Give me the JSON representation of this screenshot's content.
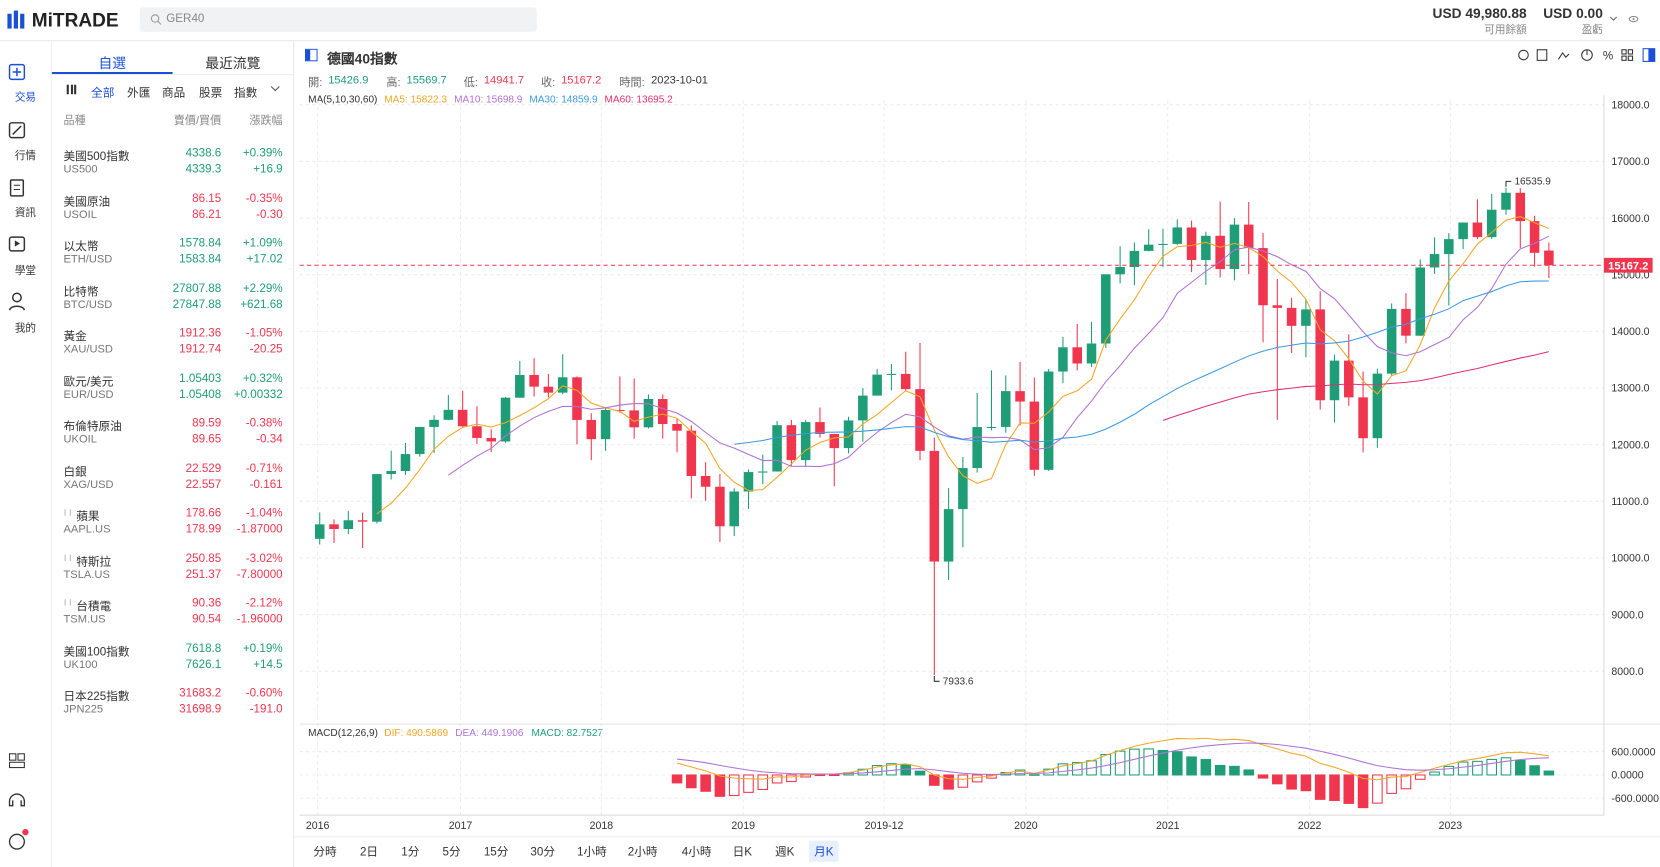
{
  "header": {
    "logo": "MiTRADE",
    "search": "GER40",
    "balance": "USD 49,980.88",
    "balance_label": "可用餘額",
    "pnl": "USD 0.00",
    "pnl_label": "盈虧"
  },
  "nav": [
    "交易",
    "行情",
    "資訊",
    "學堂",
    "我的"
  ],
  "watchlist": {
    "tabs": [
      "自選",
      "最近流覽"
    ],
    "filters": [
      "全部",
      "外匯",
      "商品",
      "股票",
      "指數"
    ],
    "columns": [
      "品種",
      "賣價/買價",
      "漲跌幅"
    ],
    "items": [
      {
        "name": "美國500指數",
        "symbol": "US500",
        "sell": "4338.6",
        "buy": "4339.3",
        "change_pct": "+0.39%",
        "change": "+16.9"
      },
      {
        "name": "美國原油",
        "symbol": "USOIL",
        "sell": "86.15",
        "buy": "86.21",
        "change_pct": "-0.35%",
        "change": "-0.30"
      },
      {
        "name": "以太幣",
        "symbol": "ETH/USD",
        "sell": "1578.84",
        "buy": "1583.84",
        "change_pct": "+1.09%",
        "change": "+17.02"
      },
      {
        "name": "比特幣",
        "symbol": "BTC/USD",
        "sell": "27807.88",
        "buy": "27847.88",
        "change_pct": "+2.29%",
        "change": "+621.68"
      },
      {
        "name": "黃金",
        "symbol": "XAU/USD",
        "sell": "1912.36",
        "buy": "1912.74",
        "change_pct": "-1.05%",
        "change": "-20.25"
      },
      {
        "name": "歐元/美元",
        "symbol": "EUR/USD",
        "sell": "1.05403",
        "buy": "1.05408",
        "change_pct": "+0.32%",
        "change": "+0.00332"
      },
      {
        "name": "布倫特原油",
        "symbol": "UKOIL",
        "sell": "89.59",
        "buy": "89.65",
        "change_pct": "-0.38%",
        "change": "-0.34"
      },
      {
        "name": "白銀",
        "symbol": "XAG/USD",
        "sell": "22.529",
        "buy": "22.557",
        "change_pct": "-0.71%",
        "change": "-0.161"
      },
      {
        "name": "蘋果",
        "symbol": "AAPL.US",
        "sell": "178.66",
        "buy": "178.99",
        "change_pct": "-1.04%",
        "change": "-1.87000"
      },
      {
        "name": "特斯拉",
        "symbol": "TSLA.US",
        "sell": "250.85",
        "buy": "251.37",
        "change_pct": "-3.02%",
        "change": "-7.80000"
      },
      {
        "name": "台積電",
        "symbol": "TSM.US",
        "sell": "90.36",
        "buy": "90.54",
        "change_pct": "-2.12%",
        "change": "-1.96000"
      },
      {
        "name": "美國100指數",
        "symbol": "UK100",
        "sell": "7618.8",
        "buy": "7626.1",
        "change_pct": "+0.19%",
        "change": "+14.5"
      },
      {
        "name": "日本225指數",
        "symbol": "JPN225",
        "sell": "31683.2",
        "buy": "31698.9",
        "change_pct": "-0.60%",
        "change": "-191.0"
      }
    ]
  },
  "chart_panel": {
    "title": "德國40指數",
    "info_labels": [
      "開:",
      "高:",
      "低:",
      "收:",
      "時間:"
    ],
    "date": "2023-10-01",
    "ma_label": "MA(5,10,30,60)",
    "ma_values": [
      "MA5: 15822.3",
      "MA10: 15698.9",
      "MA30: 14859.9",
      "MA60: 13695.2"
    ],
    "macd_label": "MACD(12,26,9)",
    "macd_values": [
      "DIF: 490.5869",
      "DEA: 449.1906",
      "MACD: 82.7527"
    ],
    "x_labels": [
      "2016",
      "2017",
      "2018",
      "2019",
      "2019-12",
      "2020",
      "2021",
      "2022",
      "2023"
    ],
    "timeframes": [
      "分時",
      "2日",
      "1分",
      "5分",
      "15分",
      "30分",
      "1小時",
      "2小時",
      "4小時",
      "日K",
      "週K",
      "月K"
    ],
    "active_timeframe": 11
  },
  "chart": {
    "type": "candlestick",
    "up_color": "#1f9d77",
    "down_color": "#f0364f",
    "ma_periods": [
      5,
      10,
      30,
      60
    ],
    "ma_colors": [
      "#f5a623",
      "#b072d6",
      "#3a9ae6",
      "#e0306e"
    ],
    "macd_colors": [
      "#f5a623",
      "#b072d6"
    ],
    "ylim": [
      7140,
      18075
    ],
    "yticks": [
      {
        "value": 8000,
        "label": "8000.0"
      },
      {
        "value": 9000,
        "label": "9000.0"
      },
      {
        "value": 10000,
        "label": "10000.0"
      },
      {
        "value": 11000,
        "label": "11000.0"
      },
      {
        "value": 12000,
        "label": "12000.0"
      },
      {
        "value": 13000,
        "label": "13000.0"
      },
      {
        "value": 14000,
        "label": "14000.0"
      },
      {
        "value": 15000,
        "label": "15000.0"
      },
      {
        "value": 16000,
        "label": "16000.0"
      },
      {
        "value": 17000,
        "label": "17000.0"
      },
      {
        "value": 18000,
        "label": "18000.0"
      }
    ],
    "macd_ylim": [
      -1036,
      1200
    ],
    "macd_yticks": [
      {
        "value": 600,
        "label": "600.0000"
      },
      {
        "value": 0,
        "label": "0.0000"
      },
      {
        "value": -600,
        "label": "-600.0000"
      }
    ],
    "candles": [
      [
        10337,
        10802,
        10237,
        10593
      ],
      [
        10593,
        10680,
        10263,
        10511
      ],
      [
        10511,
        10827,
        10421,
        10665
      ],
      [
        10665,
        10800,
        10175,
        10640
      ],
      [
        10640,
        11482,
        10611,
        11481
      ],
      [
        11481,
        11893,
        11386,
        11535
      ],
      [
        11535,
        12031,
        11465,
        11834
      ],
      [
        11834,
        12313,
        11789,
        12313
      ],
      [
        12313,
        12519,
        11855,
        12438
      ],
      [
        12438,
        12878,
        12432,
        12615
      ],
      [
        12615,
        12951,
        12295,
        12325
      ],
      [
        12325,
        12676,
        12013,
        12118
      ],
      [
        12118,
        12271,
        11868,
        12056
      ],
      [
        12056,
        12840,
        12034,
        12829
      ],
      [
        12829,
        13478,
        12829,
        13230
      ],
      [
        13230,
        13526,
        12853,
        13024
      ],
      [
        13024,
        13249,
        12834,
        12918
      ],
      [
        12918,
        13597,
        12888,
        13189
      ],
      [
        13189,
        13205,
        12003,
        12436
      ],
      [
        12436,
        12555,
        11726,
        12097
      ],
      [
        12097,
        12648,
        11892,
        12612
      ],
      [
        12612,
        13204,
        12564,
        12605
      ],
      [
        12605,
        13170,
        12104,
        12306
      ],
      [
        12306,
        12887,
        12284,
        12806
      ],
      [
        12806,
        12886,
        12109,
        12364
      ],
      [
        12364,
        12460,
        11865,
        12247
      ],
      [
        12247,
        12340,
        11051,
        11447
      ],
      [
        11447,
        11690,
        11009,
        11257
      ],
      [
        11257,
        11483,
        10279,
        10559
      ],
      [
        10559,
        11231,
        10386,
        11173
      ],
      [
        11173,
        11562,
        10864,
        11516
      ],
      [
        11516,
        11823,
        11299,
        11526
      ],
      [
        11526,
        12417,
        11523,
        12344
      ],
      [
        12344,
        12436,
        11620,
        11727
      ],
      [
        11727,
        12438,
        11620,
        12399
      ],
      [
        12399,
        12656,
        12125,
        12189
      ],
      [
        12189,
        12192,
        11266,
        11939
      ],
      [
        11939,
        12494,
        11845,
        12428
      ],
      [
        12428,
        12999,
        12051,
        12866
      ],
      [
        12866,
        13337,
        12866,
        13236
      ],
      [
        13236,
        13425,
        12960,
        13249
      ],
      [
        13249,
        13640,
        12948,
        12981
      ],
      [
        12981,
        13795,
        11724,
        11890
      ],
      [
        11890,
        12125,
        7933.6,
        9936
      ],
      [
        9936,
        11232,
        9610,
        10862
      ],
      [
        10862,
        11781,
        10187,
        11587
      ],
      [
        11587,
        12913,
        11507,
        12311
      ],
      [
        12311,
        13313,
        12253,
        12313
      ],
      [
        12313,
        13222,
        12211,
        12945
      ],
      [
        12945,
        13460,
        12340,
        12761
      ],
      [
        12761,
        13185,
        11450,
        11556
      ],
      [
        11556,
        13336,
        11536,
        13291
      ],
      [
        13291,
        13903,
        13085,
        13719
      ],
      [
        13719,
        14131,
        13310,
        13433
      ],
      [
        13433,
        14169,
        13371,
        13786
      ],
      [
        13786,
        15008,
        13707,
        15008
      ],
      [
        15008,
        15502,
        14847,
        15136
      ],
      [
        15136,
        15568,
        14816,
        15421
      ],
      [
        15421,
        15803,
        15412,
        15531
      ],
      [
        15531,
        15810,
        15133,
        15544
      ],
      [
        15544,
        15977,
        15528,
        15835
      ],
      [
        15835,
        15955,
        15046,
        15260
      ],
      [
        15260,
        15759,
        14819,
        15688
      ],
      [
        15688,
        16290,
        14952,
        15100
      ],
      [
        15100,
        16000,
        14900,
        15885
      ],
      [
        15885,
        16285,
        15013,
        15471
      ],
      [
        15471,
        15737,
        13807,
        14461
      ],
      [
        14461,
        14925,
        12439,
        14415
      ],
      [
        14415,
        14593,
        13618,
        14098
      ],
      [
        14098,
        14575,
        13543,
        14388
      ],
      [
        14388,
        14709,
        12618,
        12784
      ],
      [
        12784,
        13591,
        12390,
        13484
      ],
      [
        13484,
        13948,
        12685,
        12835
      ],
      [
        12835,
        13291,
        11863,
        12114
      ],
      [
        12114,
        13340,
        11946,
        13254
      ],
      [
        13254,
        14494,
        13218,
        14397
      ],
      [
        14397,
        14675,
        13791,
        13924
      ],
      [
        13924,
        15270,
        13920,
        15128
      ],
      [
        15128,
        15659,
        15015,
        15365
      ],
      [
        15365,
        15736,
        14458,
        15629
      ],
      [
        15629,
        15922,
        15453,
        15922
      ],
      [
        15922,
        16332,
        15629,
        15664
      ],
      [
        15664,
        16427,
        15629,
        16148
      ],
      [
        16148,
        16535.9,
        16061,
        16447
      ],
      [
        16447,
        16529,
        15469,
        15947
      ],
      [
        15947,
        16042,
        15140,
        15387
      ],
      [
        15426.9,
        15569.7,
        14941.7,
        15167.2
      ]
    ]
  }
}
